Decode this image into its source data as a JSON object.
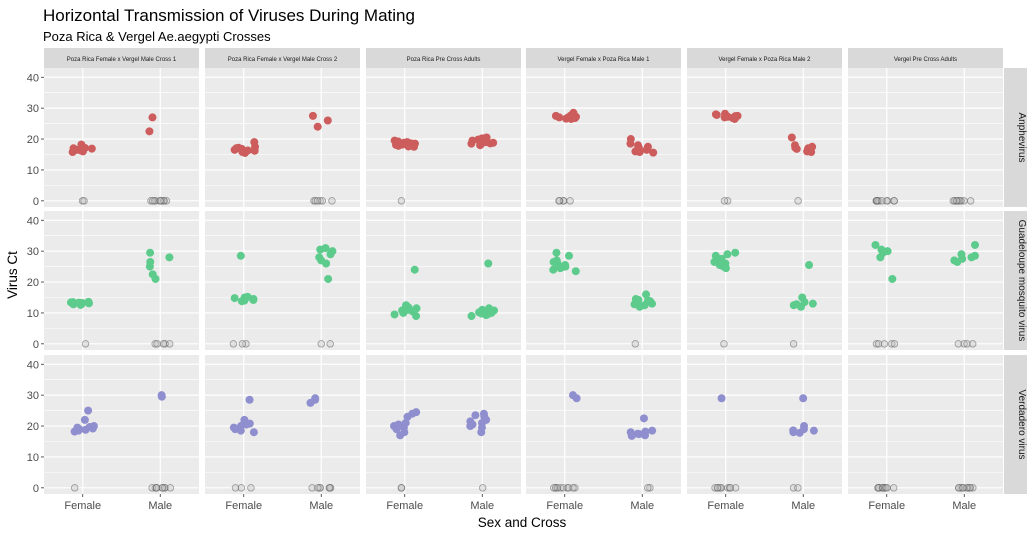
{
  "chart_data": {
    "type": "scatter",
    "title": "Horizontal Transmission of Viruses During Mating",
    "subtitle": "Poza Rica & Vergel Ae.aegypti Crosses",
    "xlabel": "Sex and Cross",
    "ylabel": "Virus Ct",
    "ylim": [
      -2,
      43
    ],
    "yticks": [
      0,
      10,
      20,
      30,
      40
    ],
    "categories": [
      "Female",
      "Male"
    ],
    "columns": [
      "Poza Rica Female x Vergel Male Cross 1",
      "Poza Rica Female x Vergel Male Cross 2",
      "Poza Rica Pre Cross Adults",
      "Vergel Female x Poza Rica Male 1",
      "Vergel Female x Poza Rica Male 2",
      "Vergel Pre Cross Adults"
    ],
    "rows": [
      "Anphevirus",
      "Guadeloupe mosquito virus",
      "Verdadero virus"
    ],
    "colors": {
      "Anphevirus": "#cd5c5c",
      "Guadeloupe mosquito virus": "#5ccb8c",
      "Verdadero virus": "#8f8fcf",
      "zero": "#bdbdbd",
      "panel_bg": "#ebebeb",
      "strip_bg": "#d9d9d9",
      "grid": "#ffffff"
    },
    "grid": true,
    "legend": "none",
    "panels": [
      {
        "row": 0,
        "col": 0,
        "female": [
          17,
          16.5,
          18.2,
          16,
          15.8,
          16.9,
          17.1,
          16.3
        ],
        "male": [
          27,
          22.5
        ],
        "female_zero": 2,
        "male_zero": 10
      },
      {
        "row": 0,
        "col": 1,
        "female": [
          19,
          17.5,
          16.5,
          15.8,
          16.2,
          17,
          16.8,
          15.5,
          16.3,
          17.2
        ],
        "male": [
          27.5,
          26,
          24
        ],
        "female_zero": 0,
        "male_zero": 6
      },
      {
        "row": 0,
        "col": 2,
        "female": [
          19.5,
          18.5,
          18,
          17.5,
          18.8,
          17.8,
          19,
          18.2,
          18.6,
          17.6,
          18.1,
          19.2
        ],
        "male": [
          20,
          19.5,
          18.5,
          18,
          20.5,
          19,
          18.8,
          19.8,
          18.3,
          20.2,
          19.2,
          18.6
        ],
        "female_zero": 1,
        "male_zero": 0
      },
      {
        "row": 0,
        "col": 3,
        "female": [
          27.5,
          27,
          26.5,
          28,
          27.2,
          26.8,
          28.5,
          27.6,
          27,
          26.6
        ],
        "male": [
          20,
          18,
          17,
          16,
          15.8,
          16.5,
          17.5,
          16.2,
          15.6,
          18.5,
          17.2
        ],
        "female_zero": 5,
        "male_zero": 0
      },
      {
        "row": 0,
        "col": 4,
        "female": [
          28,
          27.5,
          27,
          26.5,
          27.2,
          28.2,
          27.8,
          26.8,
          27.4
        ],
        "male": [
          20.5,
          18,
          17,
          16.5,
          16,
          17.5,
          16.8,
          15.8,
          17.2
        ],
        "female_zero": 2,
        "male_zero": 1
      },
      {
        "row": 0,
        "col": 5,
        "female": [],
        "male": [],
        "female_zero": 10,
        "male_zero": 9
      },
      {
        "row": 1,
        "col": 0,
        "female": [
          13.5,
          13,
          12.8,
          13.2,
          12.6,
          13.4,
          13.1,
          12.9,
          13.6,
          13.3
        ],
        "male": [
          29.5,
          28,
          26.5,
          25,
          22.5,
          21
        ],
        "female_zero": 1,
        "male_zero": 5
      },
      {
        "row": 1,
        "col": 1,
        "female": [
          28.5,
          15,
          14.5,
          14,
          13.8,
          14.8,
          14.2,
          15.2
        ],
        "male": [
          31,
          30.5,
          30,
          29,
          28,
          27,
          26,
          21
        ],
        "female_zero": 3,
        "male_zero": 2
      },
      {
        "row": 1,
        "col": 2,
        "female": [
          24,
          12,
          11.5,
          11,
          10.5,
          10,
          9.5,
          9,
          12.5,
          11.8,
          10.8
        ],
        "male": [
          26,
          11.5,
          11,
          10.5,
          10,
          9.5,
          9,
          10.2,
          9.8,
          10.8,
          9.3
        ],
        "female_zero": 0,
        "male_zero": 0
      },
      {
        "row": 1,
        "col": 3,
        "female": [
          29.5,
          28.5,
          27,
          26,
          25,
          24.5,
          24,
          23.5,
          25.5,
          26.5,
          24.8
        ],
        "male": [
          16,
          14.5,
          14,
          13.5,
          13,
          12.5,
          12,
          13.8,
          12.8,
          14.2
        ],
        "female_zero": 0,
        "male_zero": 1
      },
      {
        "row": 1,
        "col": 4,
        "female": [
          29.5,
          29,
          28.5,
          27,
          26,
          25.5,
          25,
          24.5,
          27.5,
          26.5
        ],
        "male": [
          25.5,
          15,
          13.5,
          13,
          12.5,
          12,
          12.8
        ],
        "female_zero": 1,
        "male_zero": 1
      },
      {
        "row": 1,
        "col": 5,
        "female": [
          32,
          30,
          30.5,
          29.5,
          28,
          21
        ],
        "male": [
          32,
          29,
          28.5,
          28,
          27.5,
          27,
          26.5
        ],
        "female_zero": 5,
        "male_zero": 4
      },
      {
        "row": 2,
        "col": 0,
        "female": [
          25,
          22,
          20,
          19.5,
          19,
          18.5,
          18.2,
          19.2,
          18.8,
          19.7
        ],
        "male": [
          30,
          29.5
        ],
        "female_zero": 1,
        "male_zero": 9
      },
      {
        "row": 2,
        "col": 1,
        "female": [
          28.5,
          22,
          21,
          20.5,
          20,
          19.5,
          19,
          18.5,
          18,
          20.8
        ],
        "male": [
          29,
          28.5,
          27.5
        ],
        "female_zero": 3,
        "male_zero": 7
      },
      {
        "row": 2,
        "col": 2,
        "female": [
          24.5,
          24,
          23,
          21,
          20,
          19.5,
          19,
          18,
          17,
          20.5
        ],
        "male": [
          24,
          23.5,
          23,
          22,
          21,
          20.5,
          20,
          19.5,
          18,
          21.5
        ],
        "female_zero": 2,
        "male_zero": 1
      },
      {
        "row": 2,
        "col": 3,
        "female": [
          30,
          29
        ],
        "male": [
          22.5,
          18.5,
          18,
          17.5,
          17,
          16.8,
          18.2,
          17.4
        ],
        "female_zero": 10,
        "male_zero": 2
      },
      {
        "row": 2,
        "col": 4,
        "female": [
          29
        ],
        "male": [
          29,
          20,
          19,
          18.5,
          18,
          17.8,
          18.6
        ],
        "female_zero": 9,
        "male_zero": 2
      },
      {
        "row": 2,
        "col": 5,
        "female": [],
        "male": [],
        "female_zero": 11,
        "male_zero": 10
      }
    ]
  }
}
